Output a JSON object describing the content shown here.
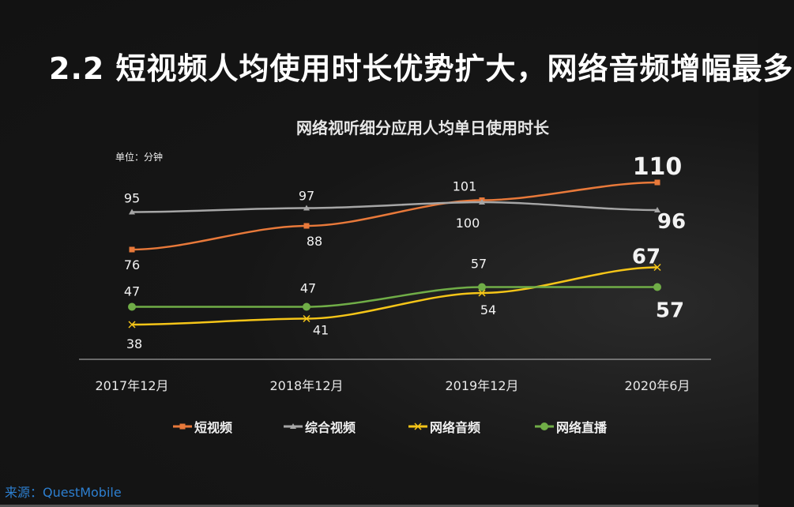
{
  "slide_title": "2.2 短视频人均使用时长优势扩大，网络音频增幅最多",
  "source": "来源：QuestMobile",
  "chart_data": {
    "type": "line",
    "title": "网络视听细分应用人均单日使用时长",
    "unit_label": "单位：分钟",
    "categories": [
      "2017年12月",
      "2018年12月",
      "2019年12月",
      "2020年6月"
    ],
    "ylim": [
      30,
      115
    ],
    "grid": false,
    "legend": "bottom",
    "series": [
      {
        "name": "短视频",
        "values": [
          76,
          88,
          101,
          110
        ],
        "color": "#e8793a",
        "marker": "square"
      },
      {
        "name": "综合视频",
        "values": [
          95,
          97,
          100,
          96
        ],
        "color": "#a6a6a6",
        "marker": "triangle"
      },
      {
        "name": "网络音频",
        "values": [
          38,
          41,
          54,
          67
        ],
        "color": "#f5c518",
        "marker": "x"
      },
      {
        "name": "网络直播",
        "values": [
          47,
          47,
          57,
          57
        ],
        "color": "#70ad47",
        "marker": "circle"
      }
    ]
  }
}
